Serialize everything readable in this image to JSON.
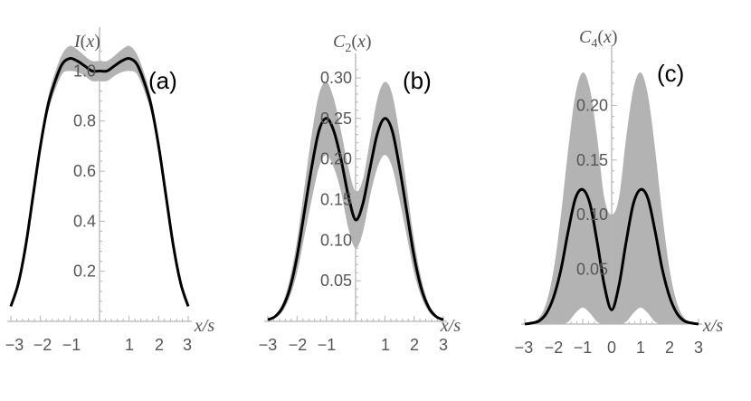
{
  "chart_data": [
    {
      "type": "line",
      "panel_label": "(a)",
      "ylabel": "I(x)",
      "xlabel": "x/s",
      "xlim": [
        -3,
        3
      ],
      "ylim": [
        0,
        1.11
      ],
      "xticks": [
        -3,
        -2,
        -1,
        1,
        2,
        3
      ],
      "xtick_labels": [
        "−3",
        "−2",
        "−1",
        "1",
        "2",
        "3"
      ],
      "yticks": [
        0.2,
        0.4,
        0.6,
        0.8,
        1.0
      ],
      "ytick_labels": [
        "0.2",
        "0.4",
        "0.6",
        "0.8",
        "1.0"
      ],
      "series": [
        {
          "style": "mean-line",
          "x": [
            -3,
            -2.75,
            -2.5,
            -2.25,
            -2,
            -1.75,
            -1.5,
            -1.25,
            -1,
            -0.75,
            -0.5,
            -0.25,
            0,
            0.25,
            0.5,
            0.75,
            1,
            1.25,
            1.5,
            1.75,
            2,
            2.25,
            2.5,
            2.75,
            3
          ],
          "y": [
            0.06,
            0.15,
            0.3,
            0.5,
            0.7,
            0.86,
            0.96,
            1.03,
            1.05,
            1.04,
            1.02,
            1.0,
            1.0,
            1.0,
            1.02,
            1.04,
            1.05,
            1.03,
            0.96,
            0.86,
            0.7,
            0.5,
            0.3,
            0.15,
            0.06
          ]
        },
        {
          "style": "band",
          "x": [
            -3,
            -2.75,
            -2.5,
            -2.25,
            -2,
            -1.75,
            -1.5,
            -1.25,
            -1,
            -0.75,
            -0.5,
            -0.25,
            0,
            0.25,
            0.5,
            0.75,
            1,
            1.25,
            1.5,
            1.75,
            2,
            2.25,
            2.5,
            2.75,
            3
          ],
          "upper": [
            0.065,
            0.158,
            0.312,
            0.518,
            0.725,
            0.89,
            0.995,
            1.07,
            1.1,
            1.085,
            1.06,
            1.04,
            1.04,
            1.04,
            1.06,
            1.085,
            1.1,
            1.07,
            0.995,
            0.89,
            0.725,
            0.518,
            0.312,
            0.158,
            0.065
          ],
          "lower": [
            0.055,
            0.142,
            0.288,
            0.482,
            0.675,
            0.83,
            0.925,
            0.99,
            1.0,
            0.995,
            0.98,
            0.96,
            0.96,
            0.96,
            0.98,
            0.995,
            1.0,
            0.99,
            0.925,
            0.83,
            0.675,
            0.482,
            0.288,
            0.142,
            0.055
          ]
        }
      ]
    },
    {
      "type": "line",
      "panel_label": "(b)",
      "ylabel": "C2(x)",
      "xlabel": "x/s",
      "xlim": [
        -3,
        3
      ],
      "ylim": [
        0,
        0.31
      ],
      "xticks": [
        -3,
        -2,
        -1,
        1,
        2,
        3
      ],
      "xtick_labels": [
        "−3",
        "−2",
        "−1",
        "1",
        "2",
        "3"
      ],
      "yticks": [
        0.05,
        0.1,
        0.15,
        0.2,
        0.25,
        0.3
      ],
      "ytick_labels": [
        "0.05",
        "0.10",
        "0.15",
        "0.20",
        "0.25",
        "0.30"
      ],
      "series": [
        {
          "style": "mean-line",
          "x": [
            -3,
            -2.75,
            -2.5,
            -2.25,
            -2,
            -1.75,
            -1.5,
            -1.25,
            -1,
            -0.75,
            -0.5,
            -0.25,
            0,
            0.25,
            0.5,
            0.75,
            1,
            1.25,
            1.5,
            1.75,
            2,
            2.25,
            2.5,
            2.75,
            3
          ],
          "y": [
            0.002,
            0.006,
            0.017,
            0.04,
            0.08,
            0.135,
            0.19,
            0.235,
            0.25,
            0.235,
            0.2,
            0.155,
            0.125,
            0.145,
            0.19,
            0.232,
            0.25,
            0.235,
            0.19,
            0.135,
            0.08,
            0.04,
            0.017,
            0.006,
            0.002
          ]
        },
        {
          "style": "band",
          "x": [
            -3,
            -2.75,
            -2.5,
            -2.25,
            -2,
            -1.75,
            -1.5,
            -1.25,
            -1,
            -0.75,
            -0.5,
            -0.25,
            0,
            0.25,
            0.5,
            0.75,
            1,
            1.25,
            1.5,
            1.75,
            2,
            2.25,
            2.5,
            2.75,
            3
          ],
          "upper": [
            0.003,
            0.008,
            0.022,
            0.052,
            0.1,
            0.165,
            0.23,
            0.28,
            0.295,
            0.275,
            0.235,
            0.19,
            0.16,
            0.175,
            0.225,
            0.275,
            0.295,
            0.28,
            0.23,
            0.165,
            0.1,
            0.052,
            0.022,
            0.008,
            0.003
          ],
          "lower": [
            0.001,
            0.004,
            0.012,
            0.03,
            0.06,
            0.105,
            0.15,
            0.19,
            0.205,
            0.19,
            0.16,
            0.115,
            0.09,
            0.11,
            0.155,
            0.19,
            0.205,
            0.19,
            0.15,
            0.105,
            0.06,
            0.03,
            0.012,
            0.004,
            0.001
          ]
        }
      ]
    },
    {
      "type": "line",
      "panel_label": "(c)",
      "ylabel": "C4(x)",
      "xlabel": "x/s",
      "xlim": [
        -3,
        3
      ],
      "ylim": [
        0,
        0.24
      ],
      "xticks": [
        -3,
        -2,
        -1,
        0,
        1,
        2,
        3
      ],
      "xtick_labels": [
        "−3",
        "−2",
        "−1",
        "0",
        "1",
        "2",
        "3"
      ],
      "yticks": [
        0.05,
        0.1,
        0.15,
        0.2
      ],
      "ytick_labels": [
        "0.05",
        "0.10",
        "0.15",
        "0.20"
      ],
      "series": [
        {
          "style": "mean-line",
          "x": [
            -3,
            -2.75,
            -2.5,
            -2.25,
            -2,
            -1.75,
            -1.5,
            -1.25,
            -1,
            -0.75,
            -0.5,
            -0.25,
            0,
            0.25,
            0.5,
            0.75,
            1,
            1.25,
            1.5,
            1.75,
            2,
            2.25,
            2.5,
            2.75,
            3
          ],
          "y": [
            0.0,
            0.001,
            0.003,
            0.01,
            0.025,
            0.05,
            0.085,
            0.115,
            0.123,
            0.11,
            0.075,
            0.035,
            0.013,
            0.035,
            0.075,
            0.11,
            0.123,
            0.115,
            0.085,
            0.05,
            0.025,
            0.01,
            0.003,
            0.001,
            0.0
          ]
        },
        {
          "style": "band",
          "x": [
            -3,
            -2.75,
            -2.5,
            -2.25,
            -2,
            -1.75,
            -1.5,
            -1.25,
            -1,
            -0.75,
            -0.5,
            -0.25,
            0,
            0.25,
            0.5,
            0.75,
            1,
            1.25,
            1.5,
            1.75,
            2,
            2.25,
            2.5,
            2.75,
            3
          ],
          "upper": [
            0.0,
            0.002,
            0.006,
            0.02,
            0.05,
            0.1,
            0.16,
            0.21,
            0.23,
            0.215,
            0.17,
            0.115,
            0.1,
            0.115,
            0.17,
            0.215,
            0.23,
            0.21,
            0.16,
            0.1,
            0.05,
            0.02,
            0.006,
            0.002,
            0.0
          ],
          "lower": [
            0.0,
            0.0,
            0.0,
            0.0,
            0.0,
            0.0,
            0.002,
            0.01,
            0.015,
            0.01,
            0.002,
            0.0,
            0.0,
            0.0,
            0.002,
            0.01,
            0.015,
            0.01,
            0.002,
            0.0,
            0.0,
            0.0,
            0.0,
            0.0,
            0.0
          ]
        }
      ]
    }
  ]
}
